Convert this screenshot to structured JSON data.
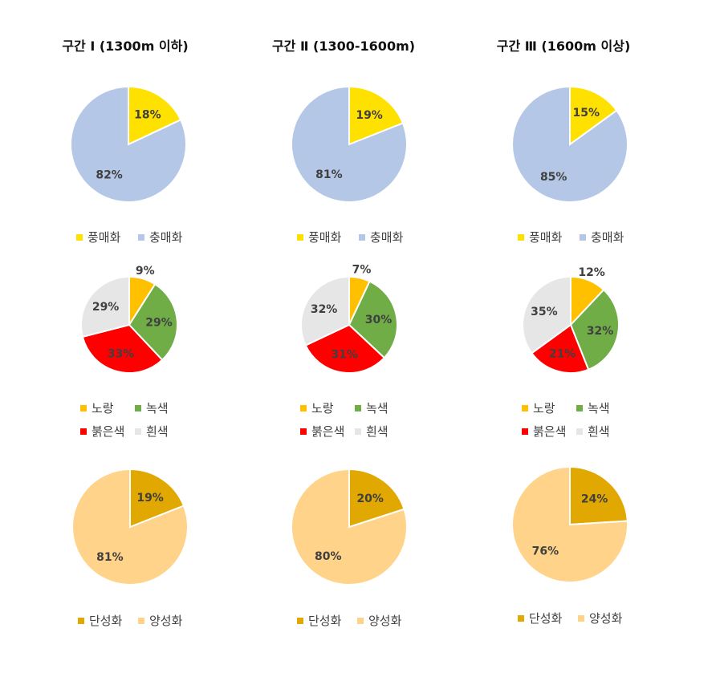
{
  "columns": [
    {
      "title": "구간 Ⅰ (1300m 이하)"
    },
    {
      "title": "구간 Ⅱ (1300-1600m)"
    },
    {
      "title": "구간 Ⅲ (1600m 이상)"
    }
  ],
  "chart_data": [
    {
      "type": "pie",
      "categories": [
        "풍매화",
        "충매화"
      ],
      "values": [
        18,
        82
      ],
      "colors": [
        "#FFE100",
        "#B4C7E7"
      ],
      "value_unit": "%",
      "legend_position": "bottom"
    },
    {
      "type": "pie",
      "categories": [
        "풍매화",
        "충매화"
      ],
      "values": [
        19,
        81
      ],
      "colors": [
        "#FFE100",
        "#B4C7E7"
      ],
      "value_unit": "%",
      "legend_position": "bottom"
    },
    {
      "type": "pie",
      "categories": [
        "풍매화",
        "충매화"
      ],
      "values": [
        15,
        85
      ],
      "colors": [
        "#FFE100",
        "#B4C7E7"
      ],
      "value_unit": "%",
      "legend_position": "bottom"
    },
    {
      "type": "pie",
      "categories": [
        "노랑",
        "녹색",
        "붉은색",
        "흰색"
      ],
      "values": [
        9,
        29,
        33,
        29
      ],
      "colors": [
        "#FFC000",
        "#70AD47",
        "#FF0000",
        "#E7E6E6"
      ],
      "value_unit": "%",
      "legend_position": "bottom"
    },
    {
      "type": "pie",
      "categories": [
        "노랑",
        "녹색",
        "붉은색",
        "흰색"
      ],
      "values": [
        7,
        30,
        31,
        32
      ],
      "colors": [
        "#FFC000",
        "#70AD47",
        "#FF0000",
        "#E7E6E6"
      ],
      "value_unit": "%",
      "legend_position": "bottom"
    },
    {
      "type": "pie",
      "categories": [
        "노랑",
        "녹색",
        "붉은색",
        "흰색"
      ],
      "values": [
        12,
        32,
        21,
        35
      ],
      "colors": [
        "#FFC000",
        "#70AD47",
        "#FF0000",
        "#E7E6E6"
      ],
      "value_unit": "%",
      "legend_position": "bottom"
    },
    {
      "type": "pie",
      "categories": [
        "단성화",
        "양성화"
      ],
      "values": [
        19,
        81
      ],
      "colors": [
        "#E0A800",
        "#FFD38A"
      ],
      "value_unit": "%",
      "legend_position": "bottom"
    },
    {
      "type": "pie",
      "categories": [
        "단성화",
        "양성화"
      ],
      "values": [
        20,
        80
      ],
      "colors": [
        "#E0A800",
        "#FFD38A"
      ],
      "value_unit": "%",
      "legend_position": "bottom"
    },
    {
      "type": "pie",
      "categories": [
        "단성화",
        "양성화"
      ],
      "values": [
        24,
        76
      ],
      "colors": [
        "#E0A800",
        "#FFD38A"
      ],
      "value_unit": "%",
      "legend_position": "bottom"
    }
  ]
}
